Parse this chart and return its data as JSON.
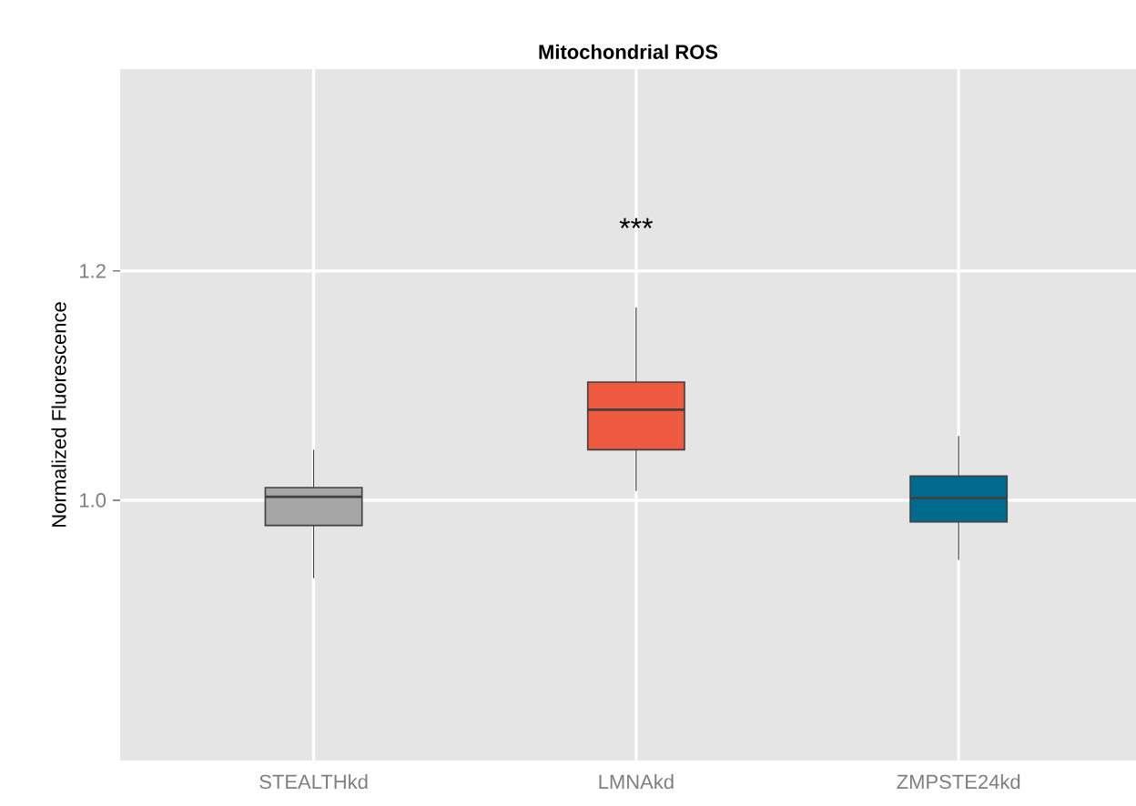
{
  "chart_data": {
    "type": "box",
    "title": "Mitochondrial ROS",
    "ylabel": "Normalized Fluorescence",
    "categories": [
      "STEALTHkd",
      "LMNAkd",
      "ZMPSTE24kd"
    ],
    "colors": [
      "#a6a6a6",
      "#ee5a40",
      "#006a8e"
    ],
    "boxes": [
      {
        "low": 0.932,
        "q1": 0.978,
        "median": 1.003,
        "q3": 1.011,
        "high": 1.044
      },
      {
        "low": 1.008,
        "q1": 1.044,
        "median": 1.079,
        "q3": 1.103,
        "high": 1.168
      },
      {
        "low": 0.948,
        "q1": 0.981,
        "median": 1.002,
        "q3": 1.021,
        "high": 1.056
      }
    ],
    "ylim": [
      0.773,
      1.376
    ],
    "yticks": [
      {
        "value": 1.0,
        "label": "1.0"
      },
      {
        "value": 1.2,
        "label": "1.2"
      }
    ],
    "grid": true,
    "annotations": [
      "***"
    ]
  }
}
